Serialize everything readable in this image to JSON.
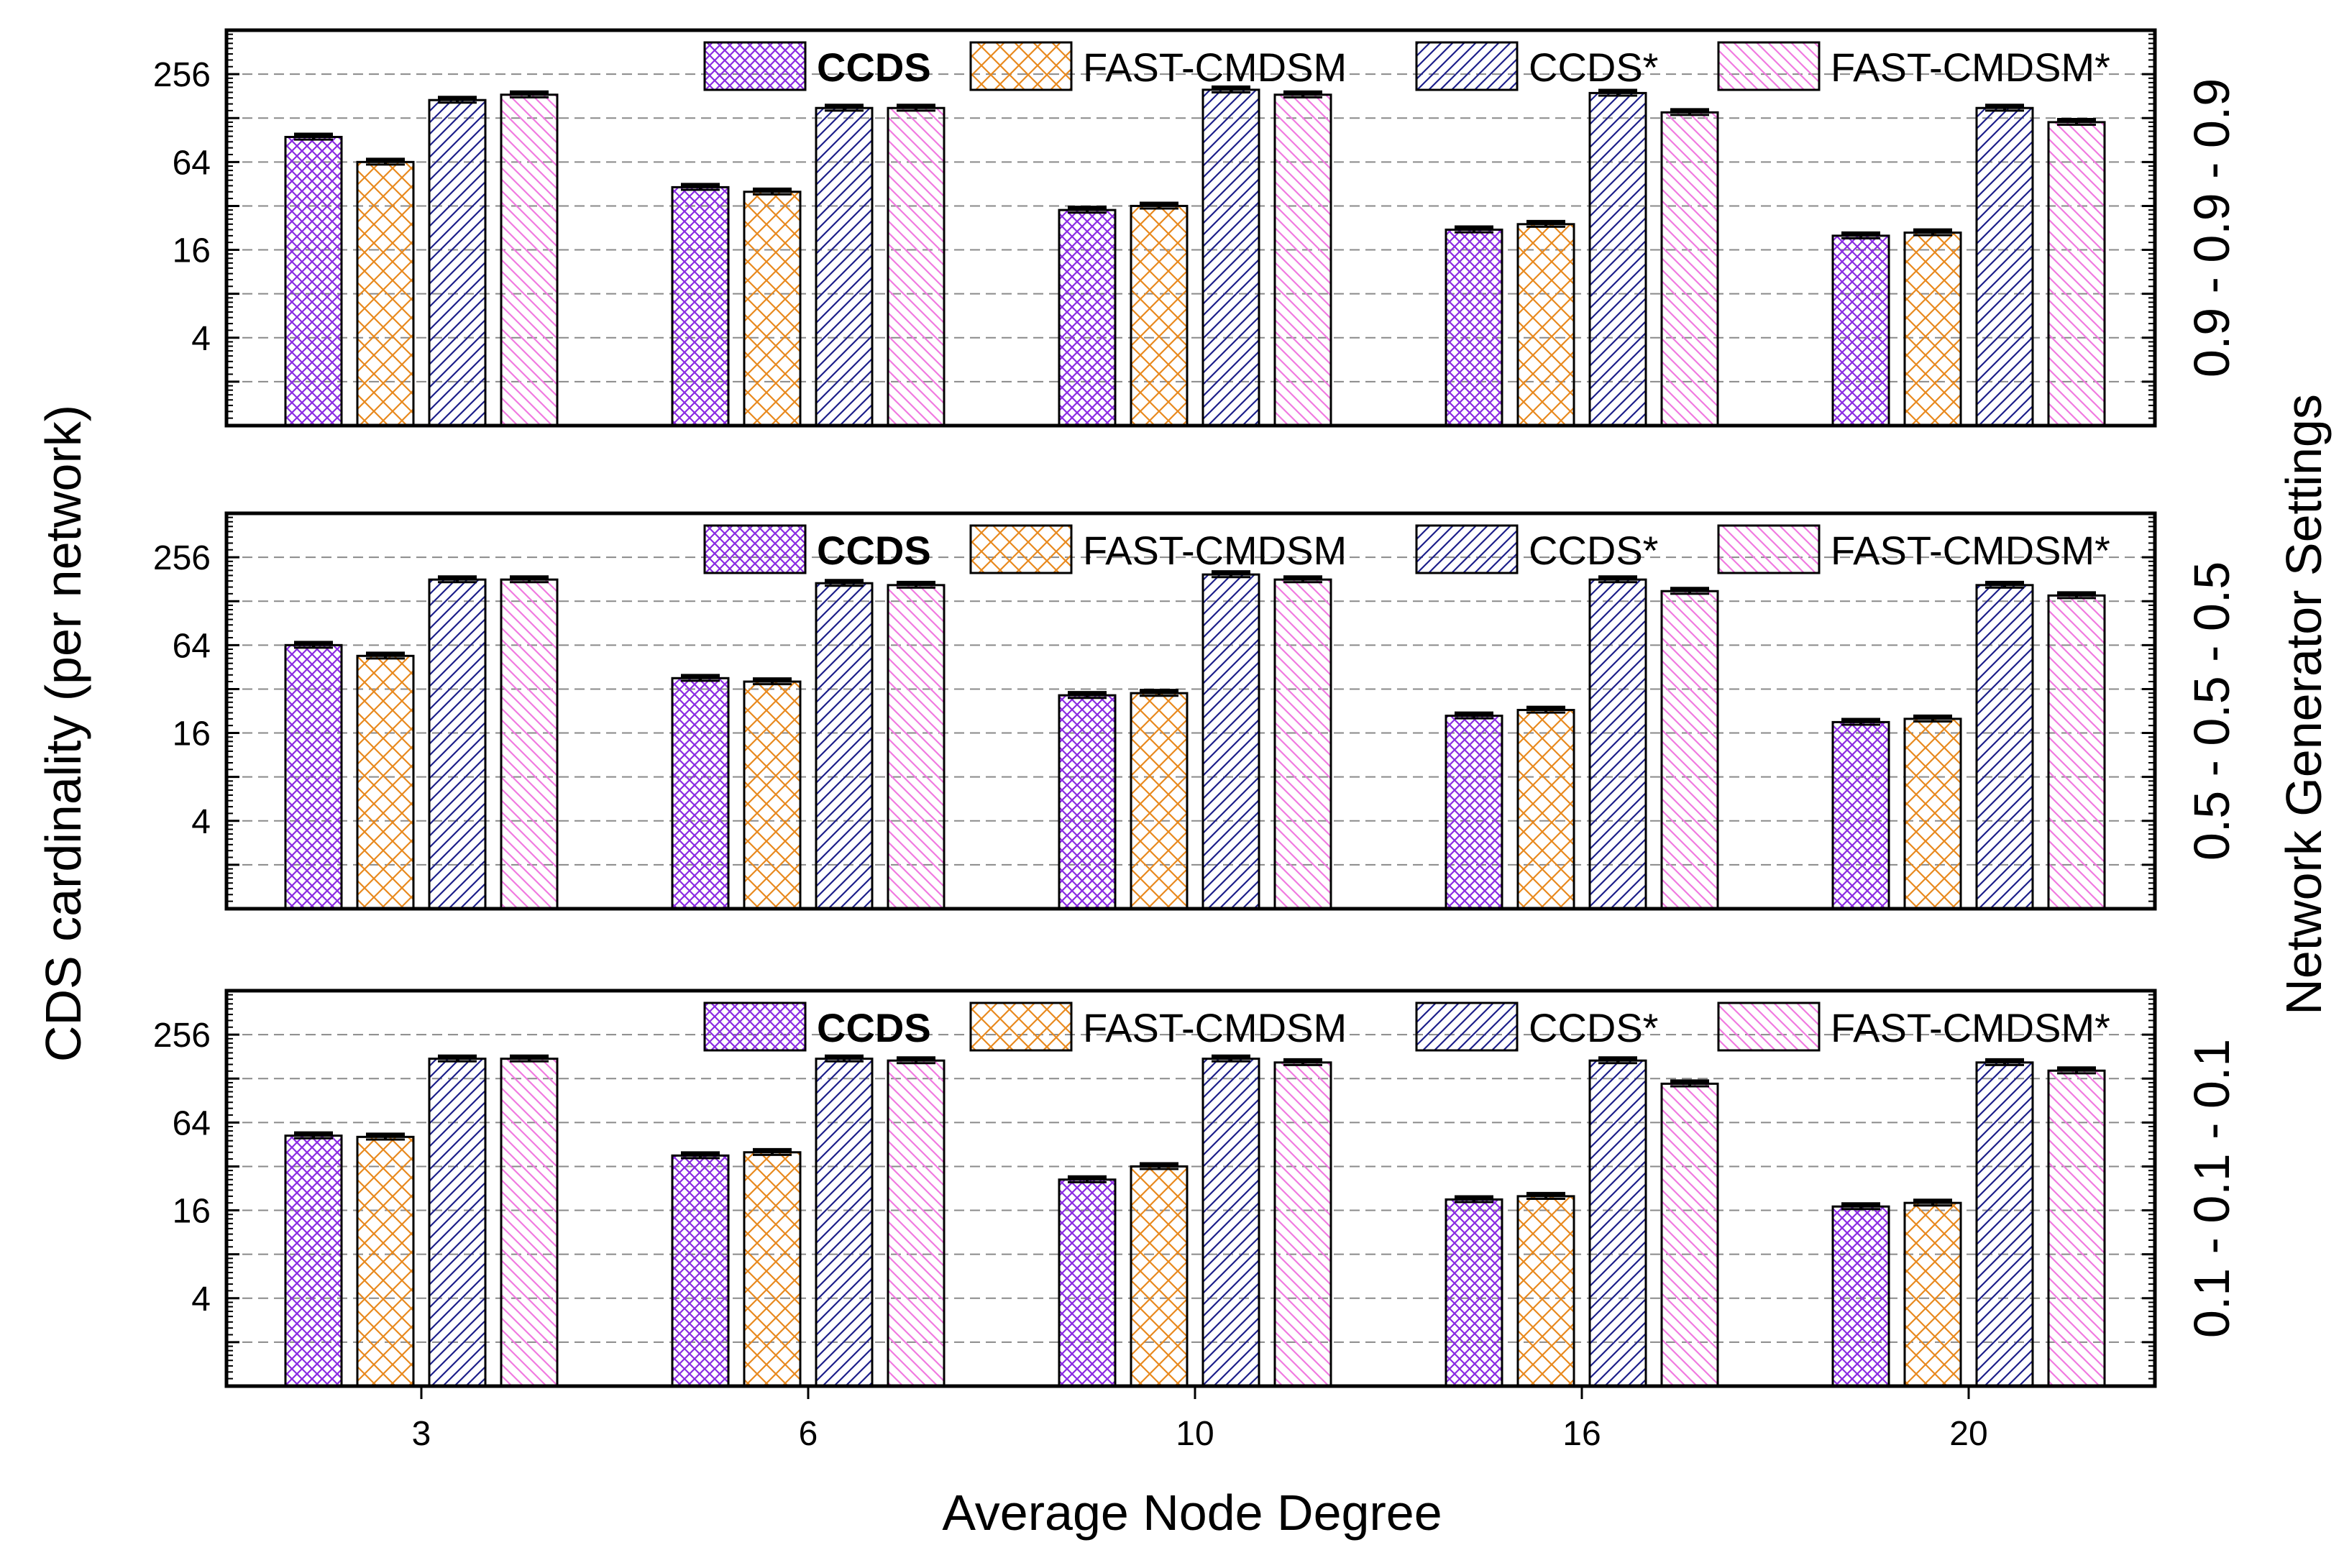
{
  "chart_data": {
    "type": "bar",
    "y_scale": "log2",
    "categories": [
      "3",
      "6",
      "10",
      "16",
      "20"
    ],
    "xlabel": "Average Node Degree",
    "ylabel": "CDS cardinality (per network)",
    "right_label": "Network Generator Settings",
    "yticks": [
      4,
      16,
      64,
      256
    ],
    "ytick_labels": [
      "4",
      "16",
      "64",
      "256"
    ],
    "ylim": [
      1,
      512
    ],
    "legend_position": "top-right",
    "colors": {
      "CCDS": "#8a2be2",
      "FAST-CMDSM": "#e8891e",
      "CCDS*": "#1c1f8a",
      "FAST-CMDSM*": "#f07ae0"
    },
    "panels": [
      {
        "setting_label": "0.9 - 0.9 - 0.9",
        "series": [
          {
            "name": "CCDS",
            "values": [
              95,
              43,
              30,
              22,
              20
            ]
          },
          {
            "name": "FAST-CMDSM",
            "values": [
              64,
              40,
              32,
              24,
              21
            ]
          },
          {
            "name": "CCDS*",
            "values": [
              170,
              150,
              200,
              190,
              150
            ]
          },
          {
            "name": "FAST-CMDSM*",
            "values": [
              185,
              150,
              185,
              140,
              120
            ]
          }
        ]
      },
      {
        "setting_label": "0.5 - 0.5 - 0.5",
        "series": [
          {
            "name": "CCDS",
            "values": [
              64,
              38,
              29,
              21,
              19
            ]
          },
          {
            "name": "FAST-CMDSM",
            "values": [
              54,
              36,
              30,
              23,
              20
            ]
          },
          {
            "name": "CCDS*",
            "values": [
              180,
              170,
              195,
              180,
              165
            ]
          },
          {
            "name": "FAST-CMDSM*",
            "values": [
              180,
              165,
              180,
              150,
              140
            ]
          }
        ]
      },
      {
        "setting_label": "0.1 - 0.1 - 0.1",
        "series": [
          {
            "name": "CCDS",
            "values": [
              52,
              38,
              26,
              19,
              17
            ]
          },
          {
            "name": "FAST-CMDSM",
            "values": [
              51,
              40,
              32,
              20,
              18
            ]
          },
          {
            "name": "CCDS*",
            "values": [
              175,
              175,
              175,
              170,
              165
            ]
          },
          {
            "name": "FAST-CMDSM*",
            "values": [
              175,
              170,
              165,
              118,
              145
            ]
          }
        ]
      }
    ]
  }
}
